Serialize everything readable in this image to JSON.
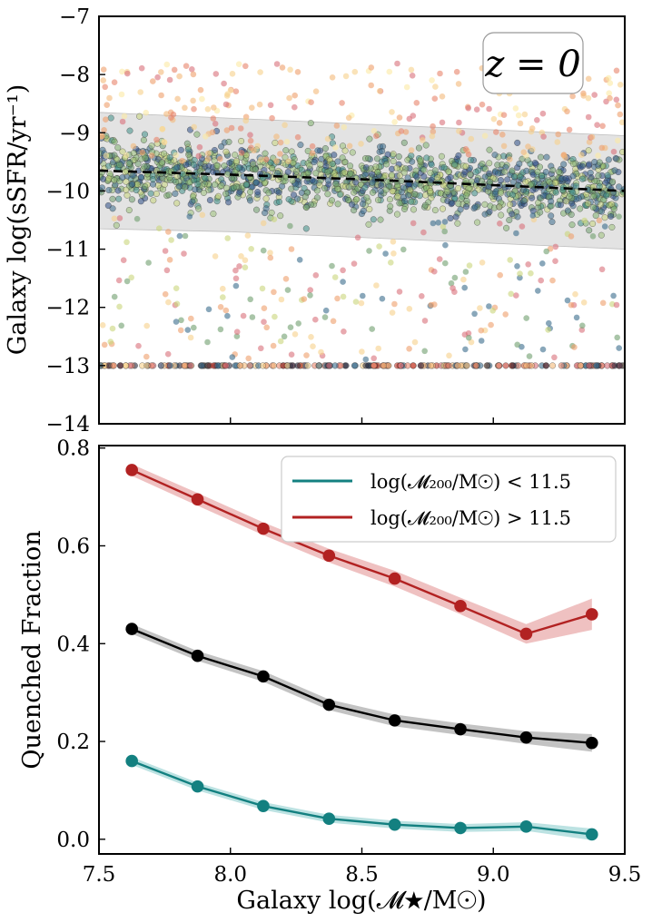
{
  "chart_data": [
    {
      "type": "scatter",
      "panel": "top",
      "annotation": "z = 0",
      "xlim": [
        7.5,
        9.5
      ],
      "ylim": [
        -14,
        -7
      ],
      "ylabel": "Galaxy log(sSFR/yr⁻¹)",
      "yticks": [
        "−7",
        "−8",
        "−9",
        "−10",
        "−11",
        "−12",
        "−13",
        "−14"
      ],
      "ytick_values": [
        -7,
        -8,
        -9,
        -10,
        -11,
        -12,
        -13,
        -14
      ],
      "xticks_values": [
        7.5,
        8.0,
        8.5,
        9.0,
        9.5
      ],
      "median_line": {
        "style": "dashed",
        "color": "#000000",
        "x": [
          7.5,
          8.0,
          8.5,
          9.0,
          9.5
        ],
        "y": [
          -9.65,
          -9.72,
          -9.8,
          -9.9,
          -10.0
        ]
      },
      "scatter_band": {
        "x": [
          7.5,
          8.0,
          8.5,
          9.0,
          9.5
        ],
        "upper": [
          -8.65,
          -8.75,
          -8.85,
          -8.95,
          -9.05
        ],
        "lower": [
          -10.65,
          -10.7,
          -10.8,
          -10.9,
          -11.0
        ],
        "color": "#d9d9d9"
      },
      "quenched_floor_value": -13,
      "point_clouds": [
        {
          "name": "star-forming",
          "count": 1400,
          "x_range": [
            7.5,
            9.5
          ],
          "center": "median_line",
          "sigma": 0.28,
          "colors": [
            "#3b6c8c",
            "#6f9e6e",
            "#9cc17a",
            "#3f8f88",
            "#c9d67c",
            "#2e4f86",
            "#7fb06d"
          ]
        },
        {
          "name": "upper-outliers",
          "count": 260,
          "x_range": [
            7.5,
            9.5
          ],
          "y_range": [
            -9.5,
            -7.8
          ],
          "colors": [
            "#d9707a",
            "#ef9f6a",
            "#f6d08b",
            "#fbe9a4",
            "#e7846a",
            "#f4b97a"
          ]
        },
        {
          "name": "lower-outliers",
          "count": 240,
          "x_range": [
            7.5,
            9.5
          ],
          "y_range": [
            -12.9,
            -10.4
          ],
          "colors": [
            "#d9707a",
            "#ef9f6a",
            "#f6d08b",
            "#6f9e6e",
            "#3b6c8c",
            "#c9d67c"
          ]
        },
        {
          "name": "quenched-row",
          "count": 230,
          "x_range": [
            7.5,
            9.5
          ],
          "y": -13,
          "colors": [
            "#c0392b",
            "#d9707a",
            "#e7846a",
            "#2c2c3e",
            "#f4b97a",
            "#3b6c8c",
            "#f6d08b"
          ]
        }
      ]
    },
    {
      "type": "line",
      "panel": "bottom",
      "xlabel": "Galaxy log(𝓜★/M☉)",
      "ylabel": "Quenched Fraction",
      "xlim": [
        7.5,
        9.5
      ],
      "ylim": [
        -0.03,
        0.805
      ],
      "xticks": [
        "7.5",
        "8.0",
        "8.5",
        "9.0",
        "9.5"
      ],
      "xtick_values": [
        7.5,
        8.0,
        8.5,
        9.0,
        9.5
      ],
      "yticks": [
        "0.0",
        "0.2",
        "0.4",
        "0.6",
        "0.8"
      ],
      "ytick_values": [
        0.0,
        0.2,
        0.4,
        0.6,
        0.8
      ],
      "x": [
        7.625,
        7.875,
        8.125,
        8.375,
        8.625,
        8.875,
        9.125,
        9.375
      ],
      "series": [
        {
          "name": "log(𝓜₂₀₀/M☉) > 11.5",
          "color": "#b22222",
          "band_color": "#e8a7a7",
          "values": [
            0.755,
            0.695,
            0.635,
            0.58,
            0.533,
            0.477,
            0.42,
            0.46
          ],
          "err": [
            0.012,
            0.013,
            0.013,
            0.014,
            0.016,
            0.017,
            0.02,
            0.032
          ]
        },
        {
          "name": "",
          "color": "#000000",
          "band_color": "#a9a9a9",
          "values": [
            0.43,
            0.375,
            0.333,
            0.275,
            0.243,
            0.225,
            0.208,
            0.197
          ],
          "err": [
            0.01,
            0.01,
            0.011,
            0.011,
            0.012,
            0.012,
            0.013,
            0.018
          ]
        },
        {
          "name": "log(𝓜₂₀₀/M☉) < 11.5",
          "color": "#138080",
          "band_color": "#9fd6d6",
          "values": [
            0.16,
            0.108,
            0.068,
            0.042,
            0.03,
            0.023,
            0.026,
            0.01
          ],
          "err": [
            0.008,
            0.008,
            0.008,
            0.008,
            0.008,
            0.008,
            0.009,
            0.012
          ]
        }
      ],
      "legend": [
        {
          "label": "log(𝓜₂₀₀/M☉) < 11.5",
          "color": "#138080"
        },
        {
          "label": "log(𝓜₂₀₀/M☉) > 11.5",
          "color": "#b22222"
        }
      ],
      "legend_location": "top-right"
    }
  ]
}
